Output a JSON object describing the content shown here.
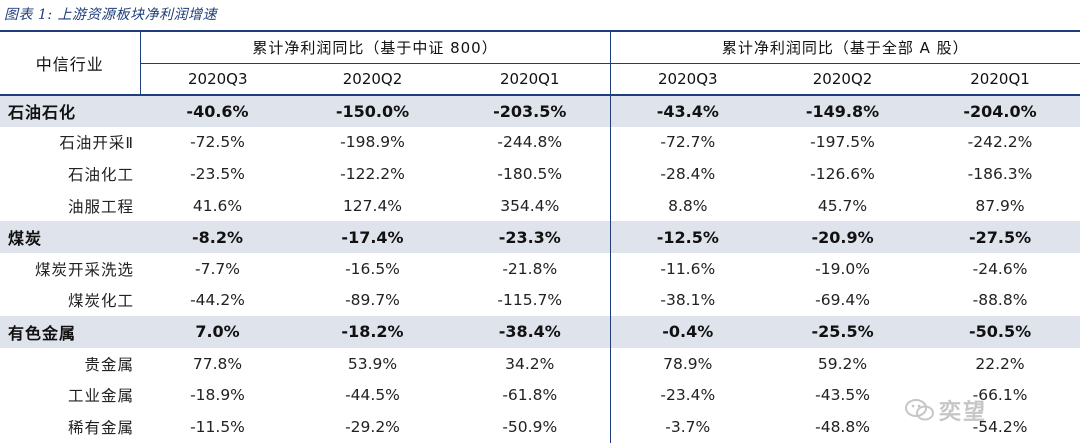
{
  "caption": "图表 1:  上游资源板块净利润增速",
  "header": {
    "industry": "中信行业",
    "group1": "累计净利润同比（基于中证 800）",
    "group2": "累计净利润同比（基于全部 A 股）",
    "periods": [
      "2020Q3",
      "2020Q2",
      "2020Q1",
      "2020Q3",
      "2020Q2",
      "2020Q1"
    ]
  },
  "rows": [
    {
      "name": "石油石化",
      "major": true,
      "values": [
        "-40.6%",
        "-150.0%",
        "-203.5%",
        "-43.4%",
        "-149.8%",
        "-204.0%"
      ]
    },
    {
      "name": "石油开采Ⅱ",
      "major": false,
      "values": [
        "-72.5%",
        "-198.9%",
        "-244.8%",
        "-72.7%",
        "-197.5%",
        "-242.2%"
      ]
    },
    {
      "name": "石油化工",
      "major": false,
      "values": [
        "-23.5%",
        "-122.2%",
        "-180.5%",
        "-28.4%",
        "-126.6%",
        "-186.3%"
      ]
    },
    {
      "name": "油服工程",
      "major": false,
      "values": [
        "41.6%",
        "127.4%",
        "354.4%",
        "8.8%",
        "45.7%",
        "87.9%"
      ]
    },
    {
      "name": "煤炭",
      "major": true,
      "values": [
        "-8.2%",
        "-17.4%",
        "-23.3%",
        "-12.5%",
        "-20.9%",
        "-27.5%"
      ]
    },
    {
      "name": "煤炭开采洗选",
      "major": false,
      "values": [
        "-7.7%",
        "-16.5%",
        "-21.8%",
        "-11.6%",
        "-19.0%",
        "-24.6%"
      ]
    },
    {
      "name": "煤炭化工",
      "major": false,
      "values": [
        "-44.2%",
        "-89.7%",
        "-115.7%",
        "-38.1%",
        "-69.4%",
        "-88.8%"
      ]
    },
    {
      "name": "有色金属",
      "major": true,
      "values": [
        "7.0%",
        "-18.2%",
        "-38.4%",
        "-0.4%",
        "-25.5%",
        "-50.5%"
      ]
    },
    {
      "name": "贵金属",
      "major": false,
      "values": [
        "77.8%",
        "53.9%",
        "34.2%",
        "78.9%",
        "59.2%",
        "22.2%"
      ]
    },
    {
      "name": "工业金属",
      "major": false,
      "values": [
        "-18.9%",
        "-44.5%",
        "-61.8%",
        "-23.4%",
        "-43.5%",
        "-66.1%"
      ]
    },
    {
      "name": "稀有金属",
      "major": false,
      "values": [
        "-11.5%",
        "-29.2%",
        "-50.9%",
        "-3.7%",
        "-48.8%",
        "-54.2%"
      ]
    }
  ],
  "watermark": {
    "icon": "wechat-icon",
    "text": "奕望"
  }
}
